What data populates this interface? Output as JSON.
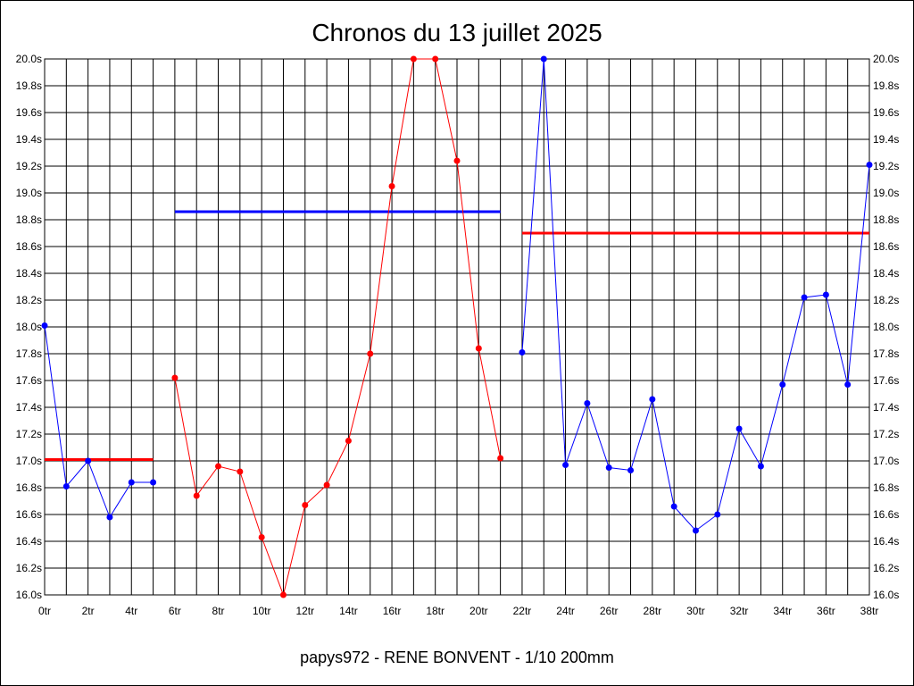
{
  "chart_data": {
    "type": "line",
    "title": "Chronos du 13 juillet 2025",
    "footer": "papys972 - RENE BONVENT - 1/10 200mm",
    "xlabel": "",
    "ylabel": "",
    "xlim": [
      0,
      38
    ],
    "ylim": [
      16.0,
      20.0
    ],
    "grid": true,
    "x_ticks": [
      "0tr",
      "2tr",
      "4tr",
      "6tr",
      "8tr",
      "10tr",
      "12tr",
      "14tr",
      "16tr",
      "18tr",
      "20tr",
      "22tr",
      "24tr",
      "26tr",
      "28tr",
      "30tr",
      "32tr",
      "34tr",
      "36tr",
      "38tr"
    ],
    "y_ticks": [
      "16.0s",
      "16.2s",
      "16.4s",
      "16.6s",
      "16.8s",
      "17.0s",
      "17.2s",
      "17.4s",
      "17.6s",
      "17.8s",
      "18.0s",
      "18.2s",
      "18.4s",
      "18.6s",
      "18.8s",
      "19.0s",
      "19.2s",
      "19.4s",
      "19.6s",
      "19.8s",
      "20.0s"
    ],
    "series": [
      {
        "color": "#0000ff",
        "x": [
          0,
          1,
          2,
          3,
          4,
          5
        ],
        "values": [
          18.01,
          16.81,
          17.0,
          16.58,
          16.84,
          16.84
        ]
      },
      {
        "color": "#ff0000",
        "x": [
          6,
          7,
          8,
          9,
          10,
          11,
          12,
          13,
          14,
          15,
          16,
          17,
          18,
          19,
          20,
          21
        ],
        "values": [
          17.62,
          16.74,
          16.96,
          16.92,
          16.43,
          16.0,
          16.67,
          16.82,
          17.15,
          17.8,
          19.05,
          20.0,
          20.0,
          19.24,
          17.84,
          17.02
        ]
      },
      {
        "color": "#0000ff",
        "x": [
          22,
          23,
          24,
          25,
          26,
          27,
          28,
          29,
          30,
          31,
          32,
          33,
          34,
          35,
          36,
          37,
          38
        ],
        "values": [
          17.81,
          20.0,
          16.97,
          17.43,
          16.95,
          16.93,
          17.46,
          16.66,
          16.48,
          16.6,
          17.24,
          16.96,
          17.57,
          18.22,
          18.24,
          17.57,
          19.21
        ]
      }
    ],
    "averages": [
      {
        "color": "#ff0000",
        "x_start": 0,
        "x_end": 5,
        "value": 17.01
      },
      {
        "color": "#0000ff",
        "x_start": 6,
        "x_end": 21,
        "value": 18.86
      },
      {
        "color": "#ff0000",
        "x_start": 22,
        "x_end": 38,
        "value": 18.7
      }
    ]
  }
}
